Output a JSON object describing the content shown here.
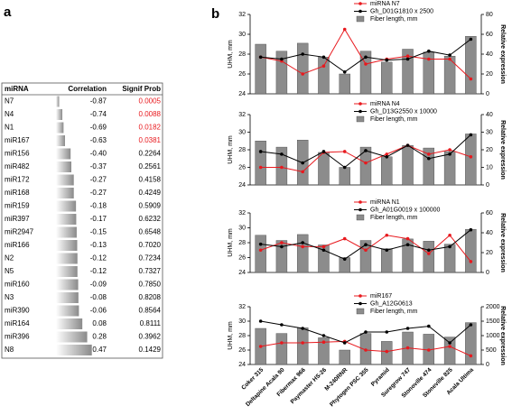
{
  "panels": {
    "a": "a",
    "b": "b"
  },
  "table": {
    "header": [
      "miRNA",
      "Correlation",
      "Signif Prob"
    ],
    "rows": [
      {
        "name": "N7",
        "correlation": "-0.87",
        "p": "0.0005",
        "color": "#e8191e"
      },
      {
        "name": "N4",
        "correlation": "-0.74",
        "p": "0.0088",
        "color": "#e8191e"
      },
      {
        "name": "N1",
        "correlation": "-0.69",
        "p": "0.0182",
        "color": "#e8191e"
      },
      {
        "name": "miR167",
        "correlation": "-0.63",
        "p": "0.0381",
        "color": "#e8191e"
      },
      {
        "name": "miR156",
        "correlation": "-0.40",
        "p": "0.2264",
        "color": "#000000"
      },
      {
        "name": "miR482",
        "correlation": "-0.37",
        "p": "0.2561",
        "color": "#000000"
      },
      {
        "name": "miR172",
        "correlation": "-0.27",
        "p": "0.4158",
        "color": "#000000"
      },
      {
        "name": "miR168",
        "correlation": "-0.27",
        "p": "0.4249",
        "color": "#000000"
      },
      {
        "name": "miR159",
        "correlation": "-0.18",
        "p": "0.5909",
        "color": "#000000"
      },
      {
        "name": "miR397",
        "correlation": "-0.17",
        "p": "0.6232",
        "color": "#000000"
      },
      {
        "name": "miR2947",
        "correlation": "-0.15",
        "p": "0.6548",
        "color": "#000000"
      },
      {
        "name": "miR166",
        "correlation": "-0.13",
        "p": "0.7020",
        "color": "#000000"
      },
      {
        "name": "N2",
        "correlation": "-0.12",
        "p": "0.7234",
        "color": "#000000"
      },
      {
        "name": "N5",
        "correlation": "-0.12",
        "p": "0.7327",
        "color": "#000000"
      },
      {
        "name": "miR160",
        "correlation": "-0.09",
        "p": "0.7850",
        "color": "#000000"
      },
      {
        "name": "N3",
        "correlation": "-0.08",
        "p": "0.8208",
        "color": "#000000"
      },
      {
        "name": "miR390",
        "correlation": "-0.06",
        "p": "0.8564",
        "color": "#000000"
      },
      {
        "name": "miR164",
        "correlation": "0.08",
        "p": "0.8111",
        "color": "#000000"
      },
      {
        "name": "miR396",
        "correlation": "0.28",
        "p": "0.3962",
        "color": "#000000"
      },
      {
        "name": "N8",
        "correlation": "0.47",
        "p": "0.1429",
        "color": "#000000"
      }
    ]
  },
  "chart_data": [
    {
      "type": "combo",
      "ylabel": "UHM, mm",
      "y2label": "Relative expression",
      "ylim": [
        24,
        32
      ],
      "yticks": [
        24,
        26,
        28,
        30,
        32
      ],
      "y2lim": [
        0,
        80
      ],
      "y2ticks": [
        0,
        20,
        40,
        60,
        80
      ],
      "series": [
        {
          "name": "Fiber length, mm",
          "type": "bar",
          "color": "#8c8c8c",
          "values": [
            29,
            28.3,
            29.1,
            27.7,
            26,
            28.3,
            27.2,
            28.5,
            28.2,
            27.8,
            29.8
          ]
        },
        {
          "name": "miRNA N7",
          "type": "line",
          "axis": "y2",
          "color": "#e8191e",
          "values": [
            37,
            33,
            20,
            28,
            65,
            30,
            35,
            38,
            35,
            35,
            15
          ]
        },
        {
          "name": "Gh_D01G1810 x 2500",
          "type": "line",
          "axis": "y2",
          "color": "#000000",
          "values": [
            37,
            35,
            40,
            37,
            22,
            37,
            34,
            35,
            43,
            39,
            55
          ]
        }
      ]
    },
    {
      "type": "combo",
      "ylabel": "UHM, mm",
      "y2label": "Relative expression",
      "ylim": [
        24,
        32
      ],
      "yticks": [
        24,
        26,
        28,
        30,
        32
      ],
      "y2lim": [
        0,
        40
      ],
      "y2ticks": [
        0,
        10,
        20,
        30,
        40
      ],
      "series": [
        {
          "name": "Fiber length, mm",
          "type": "bar",
          "color": "#8c8c8c",
          "values": [
            29,
            28.3,
            29.1,
            27.7,
            26,
            28.3,
            27.2,
            28.5,
            28.2,
            27.8,
            29.8
          ]
        },
        {
          "name": "miRNA N4",
          "type": "line",
          "axis": "y2",
          "color": "#e8191e",
          "values": [
            10,
            10,
            7.5,
            18.5,
            19,
            12.5,
            17.5,
            22.5,
            17.5,
            20,
            16
          ]
        },
        {
          "name": "Gh_D13G2550 x 10000",
          "type": "line",
          "axis": "y2",
          "color": "#000000",
          "values": [
            19,
            17.5,
            12.5,
            19,
            10,
            19.5,
            16,
            22.5,
            15,
            17.5,
            28.5
          ]
        }
      ]
    },
    {
      "type": "combo",
      "ylabel": "UHM, mm",
      "y2label": "Relative expression",
      "ylim": [
        24,
        32
      ],
      "yticks": [
        24,
        26,
        28,
        30,
        32
      ],
      "y2lim": [
        0,
        60
      ],
      "y2ticks": [
        0,
        20,
        40,
        60
      ],
      "series": [
        {
          "name": "Fiber length, mm",
          "type": "bar",
          "color": "#8c8c8c",
          "values": [
            29,
            28.3,
            29.1,
            27.7,
            26,
            28.3,
            27.2,
            28.5,
            28.2,
            27.8,
            29.8
          ]
        },
        {
          "name": "miRNA N1",
          "type": "line",
          "axis": "y2",
          "color": "#e8191e",
          "values": [
            22.5,
            30,
            26,
            26,
            34,
            22.5,
            37.5,
            34,
            19,
            37.5,
            11
          ]
        },
        {
          "name": "Gh_A01G0019 x 100000",
          "type": "line",
          "axis": "y2",
          "color": "#000000",
          "values": [
            28.5,
            26,
            30,
            22.5,
            13.5,
            28,
            22.5,
            28,
            22.5,
            26,
            43
          ]
        }
      ]
    },
    {
      "type": "combo",
      "ylabel": "UHM, mm",
      "y2label": "Relative expression",
      "ylim": [
        24,
        32
      ],
      "yticks": [
        24,
        26,
        28,
        30,
        32
      ],
      "y2lim": [
        0,
        2000
      ],
      "y2ticks": [
        0,
        500,
        1000,
        1500,
        2000
      ],
      "categories": [
        "Coker 315",
        "Deltapine Acala 90",
        "Fibermax 966",
        "Paymaster HS-26",
        "M-240RNR",
        "Phytogen PSC 355",
        "Pyramid",
        "Suregrow 747",
        "Stonoville 474",
        "Stoneville 825",
        "Acala Ultima"
      ],
      "series": [
        {
          "name": "Fiber length, mm",
          "type": "bar",
          "color": "#8c8c8c",
          "values": [
            29,
            28.3,
            29.1,
            27.7,
            26,
            28.3,
            27.2,
            28.5,
            28.2,
            27.8,
            29.8
          ]
        },
        {
          "name": "miR167",
          "type": "line",
          "axis": "y2",
          "color": "#e8191e",
          "values": [
            625,
            750,
            750,
            775,
            800,
            500,
            450,
            575,
            500,
            625,
            300
          ]
        },
        {
          "name": "Gh_A12G0613",
          "type": "line",
          "axis": "y2",
          "color": "#000000",
          "values": [
            1500,
            1375,
            1250,
            1000,
            750,
            1125,
            1125,
            1250,
            1325,
            750,
            1375
          ]
        }
      ]
    }
  ]
}
